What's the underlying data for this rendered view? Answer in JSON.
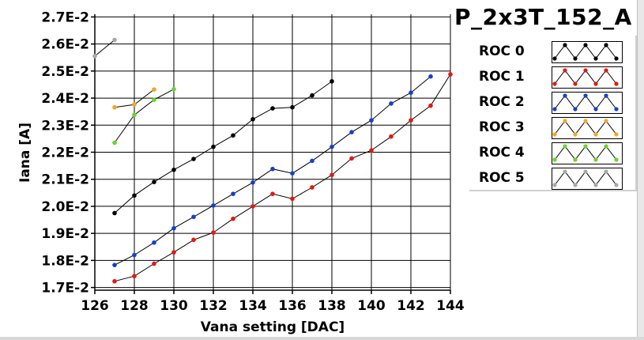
{
  "chart_data": {
    "type": "line",
    "title": "P_2x3T_152_A",
    "xlabel": "Vana setting [DAC]",
    "ylabel": "Iana [A]",
    "xlim": [
      126,
      144
    ],
    "ylim": [
      0.0169,
      0.0271
    ],
    "x_ticks": [
      126,
      128,
      130,
      132,
      134,
      136,
      138,
      140,
      142,
      144
    ],
    "y_ticks": [
      0.017,
      0.018,
      0.019,
      0.02,
      0.021,
      0.022,
      0.023,
      0.024,
      0.025,
      0.026,
      0.027
    ],
    "y_tick_labels": [
      "1.7E-2",
      "1.8E-2",
      "1.9E-2",
      "2.0E-2",
      "2.1E-2",
      "2.2E-2",
      "2.3E-2",
      "2.4E-2",
      "2.5E-2",
      "2.6E-2",
      "2.7E-2"
    ],
    "grid": true,
    "legend_position": "right",
    "series": [
      {
        "name": "ROC 0",
        "color": "#000000",
        "x": [
          127,
          128,
          129,
          130,
          131,
          132,
          133,
          134,
          135,
          136,
          137,
          138
        ],
        "y": [
          0.01975,
          0.0204,
          0.0209,
          0.02135,
          0.02175,
          0.0222,
          0.02262,
          0.02322,
          0.02362,
          0.02366,
          0.0241,
          0.02462
        ]
      },
      {
        "name": "ROC 1",
        "color": "#e8160c",
        "x": [
          127,
          128,
          129,
          130,
          131,
          132,
          133,
          134,
          135,
          136,
          137,
          138,
          139,
          140,
          141,
          142,
          143,
          144
        ],
        "y": [
          0.01723,
          0.01742,
          0.01788,
          0.0183,
          0.01876,
          0.01903,
          0.01954,
          0.02,
          0.02046,
          0.02028,
          0.0207,
          0.02116,
          0.02177,
          0.02207,
          0.02258,
          0.02318,
          0.02372,
          0.02488
        ]
      },
      {
        "name": "ROC 2",
        "color": "#1440c8",
        "x": [
          127,
          128,
          129,
          130,
          131,
          132,
          133,
          134,
          135,
          136,
          137,
          138,
          139,
          140,
          141,
          142,
          143
        ],
        "y": [
          0.01783,
          0.0182,
          0.01866,
          0.01919,
          0.01961,
          0.02003,
          0.02046,
          0.02088,
          0.02138,
          0.02122,
          0.02168,
          0.0222,
          0.02274,
          0.02318,
          0.0238,
          0.0242,
          0.0248
        ]
      },
      {
        "name": "ROC 3",
        "color": "#f5a623",
        "x": [
          127,
          128,
          129
        ],
        "y": [
          0.02366,
          0.02376,
          0.02432
        ]
      },
      {
        "name": "ROC 4",
        "color": "#6ad42a",
        "x": [
          127,
          128,
          129,
          130
        ],
        "y": [
          0.02235,
          0.02338,
          0.02394,
          0.02433
        ]
      },
      {
        "name": "ROC 5",
        "color": "#a8a8a8",
        "x": [
          126,
          127
        ],
        "y": [
          0.02555,
          0.02615
        ]
      }
    ]
  }
}
